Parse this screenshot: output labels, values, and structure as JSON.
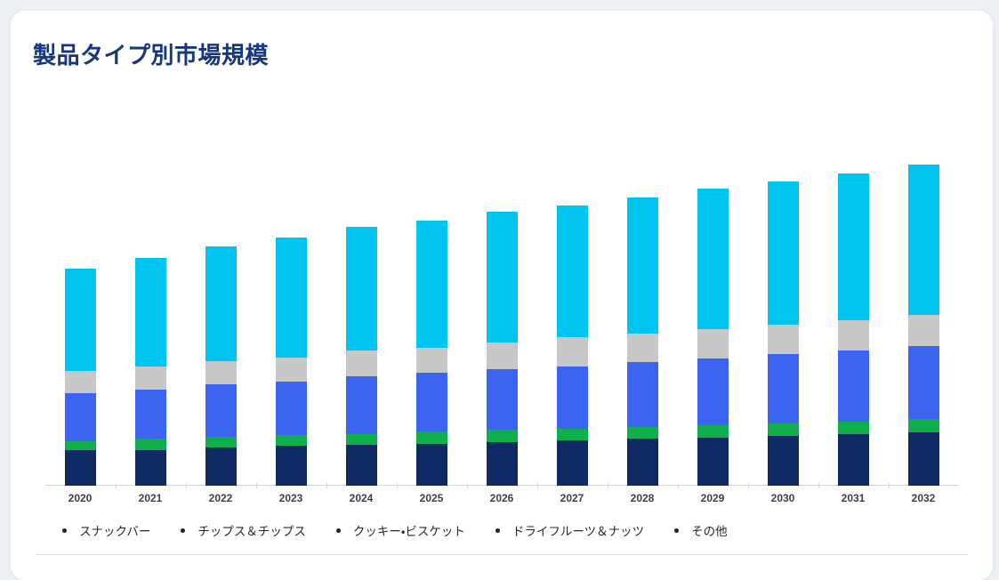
{
  "page": {
    "background_color": "#ecf0f5",
    "card_background_color": "#ffffff"
  },
  "header": {
    "title": "製品タイプ別市場規模",
    "title_color": "#16377F"
  },
  "legend": {
    "bullet_color": "#1f2327",
    "items": [
      "スナックバー",
      "チップス＆チップス",
      "クッキー・ビスケット",
      "ドライフルーツ＆ナッツ",
      "その他"
    ]
  },
  "chart_data": {
    "type": "bar",
    "stacked": true,
    "title": "製品タイプ別市場規模",
    "xlabel": "",
    "ylabel": "",
    "units": "relative units (no value axis shown in chart)",
    "ylim": [
      0,
      400
    ],
    "grid": false,
    "legend_position": "bottom",
    "axis_color": "#d0d3d8",
    "tick_label_color": "#3c4043",
    "categories": [
      "2020",
      "2021",
      "2022",
      "2023",
      "2024",
      "2025",
      "2026",
      "2027",
      "2028",
      "2029",
      "2030",
      "2031",
      "2032"
    ],
    "series": [
      {
        "name": "スナックバー",
        "color": "#0D2A63",
        "values": [
          40,
          40,
          43,
          45,
          46,
          47,
          49,
          51,
          53,
          54,
          56,
          58,
          60
        ]
      },
      {
        "name": "チップス＆チップス",
        "color": "#0FAF4E",
        "values": [
          10,
          13,
          12,
          12,
          12,
          14,
          14,
          13,
          13,
          14,
          14,
          14,
          15
        ]
      },
      {
        "name": "クッキー・ビスケット",
        "color": "#3B64F1",
        "values": [
          54,
          55,
          59,
          60,
          65,
          66,
          68,
          70,
          73,
          75,
          78,
          80,
          82
        ]
      },
      {
        "name": "ドライフルーツ＆ナッツ",
        "color": "#C7C7C7",
        "values": [
          25,
          26,
          26,
          27,
          29,
          28,
          30,
          33,
          32,
          33,
          33,
          34,
          35
        ]
      },
      {
        "name": "その他",
        "color": "#00C4F0",
        "values": [
          115,
          122,
          129,
          135,
          139,
          143,
          147,
          148,
          153,
          158,
          161,
          165,
          169
        ]
      }
    ]
  }
}
